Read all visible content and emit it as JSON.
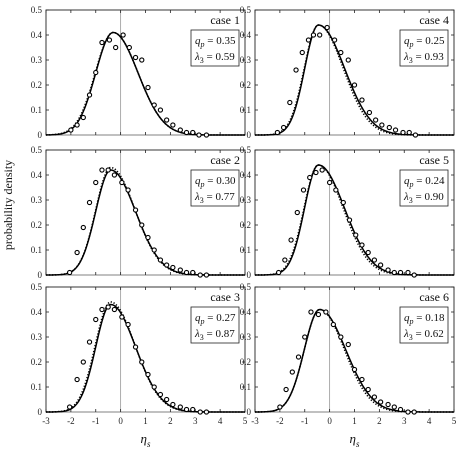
{
  "figure": {
    "ylabel": "probability density",
    "xlabel_symbol": "η",
    "xlabel_sub": "s",
    "xticks": [
      -3,
      -2,
      -1,
      0,
      1,
      2,
      3,
      4,
      5
    ],
    "yticks": [
      "0",
      "0.1",
      "0.2",
      "0.3",
      "0.4",
      "0.5"
    ],
    "param_q_symbol": "q",
    "param_q_sub": "p",
    "param_l_symbol": "λ",
    "param_l_sub": "3"
  },
  "chart_data": [
    {
      "type": "scatter",
      "title": "case 1",
      "params": {
        "qp": "0.35",
        "lambda3": "0.59"
      },
      "xlim": [
        -3,
        5
      ],
      "ylim": [
        0,
        0.5
      ],
      "points": [
        [
          -2.0,
          0.02
        ],
        [
          -1.75,
          0.04
        ],
        [
          -1.5,
          0.07
        ],
        [
          -1.25,
          0.16
        ],
        [
          -1.0,
          0.25
        ],
        [
          -0.75,
          0.37
        ],
        [
          -0.45,
          0.38
        ],
        [
          -0.2,
          0.35
        ],
        [
          0.1,
          0.4
        ],
        [
          0.35,
          0.35
        ],
        [
          0.6,
          0.31
        ],
        [
          0.85,
          0.3
        ],
        [
          1.1,
          0.19
        ],
        [
          1.35,
          0.12
        ],
        [
          1.6,
          0.1
        ],
        [
          1.85,
          0.06
        ],
        [
          2.1,
          0.04
        ],
        [
          2.4,
          0.02
        ],
        [
          2.65,
          0.01
        ],
        [
          2.9,
          0.01
        ],
        [
          3.15,
          0.0
        ],
        [
          3.45,
          0.0
        ]
      ],
      "curves": [
        {
          "style": "solid",
          "peak_x": -0.3,
          "peak_y": 0.41,
          "left_width": 0.7,
          "right_width": 1.0
        },
        {
          "style": "dotted",
          "peak_x": -0.3,
          "peak_y": 0.41,
          "left_width": 0.72,
          "right_width": 1.0
        }
      ]
    },
    {
      "type": "scatter",
      "title": "case 4",
      "params": {
        "qp": "0.25",
        "lambda3": "0.93"
      },
      "xlim": [
        -3,
        5
      ],
      "ylim": [
        0,
        0.5
      ],
      "points": [
        [
          -2.1,
          0.01
        ],
        [
          -1.85,
          0.03
        ],
        [
          -1.6,
          0.13
        ],
        [
          -1.35,
          0.26
        ],
        [
          -1.1,
          0.33
        ],
        [
          -0.85,
          0.38
        ],
        [
          -0.65,
          0.4
        ],
        [
          -0.4,
          0.4
        ],
        [
          -0.1,
          0.43
        ],
        [
          0.2,
          0.38
        ],
        [
          0.45,
          0.33
        ],
        [
          0.75,
          0.3
        ],
        [
          1.0,
          0.2
        ],
        [
          1.3,
          0.14
        ],
        [
          1.6,
          0.09
        ],
        [
          1.85,
          0.06
        ],
        [
          2.1,
          0.04
        ],
        [
          2.4,
          0.03
        ],
        [
          2.65,
          0.02
        ],
        [
          2.95,
          0.01
        ],
        [
          3.2,
          0.01
        ],
        [
          3.45,
          0.0
        ]
      ],
      "curves": [
        {
          "style": "solid",
          "peak_x": -0.45,
          "peak_y": 0.44,
          "left_width": 0.55,
          "right_width": 1.05
        },
        {
          "style": "dotted",
          "peak_x": -0.45,
          "peak_y": 0.44,
          "left_width": 0.57,
          "right_width": 1.0
        }
      ]
    },
    {
      "type": "scatter",
      "title": "case 2",
      "params": {
        "qp": "0.30",
        "lambda3": "0.77"
      },
      "xlim": [
        -3,
        5
      ],
      "ylim": [
        0,
        0.5
      ],
      "points": [
        [
          -2.05,
          0.01
        ],
        [
          -1.75,
          0.09
        ],
        [
          -1.5,
          0.19
        ],
        [
          -1.25,
          0.29
        ],
        [
          -1.0,
          0.37
        ],
        [
          -0.75,
          0.42
        ],
        [
          -0.5,
          0.42
        ],
        [
          -0.25,
          0.4
        ],
        [
          0.05,
          0.37
        ],
        [
          0.3,
          0.34
        ],
        [
          0.6,
          0.26
        ],
        [
          0.85,
          0.2
        ],
        [
          1.1,
          0.15
        ],
        [
          1.35,
          0.1
        ],
        [
          1.6,
          0.06
        ],
        [
          1.85,
          0.04
        ],
        [
          2.1,
          0.03
        ],
        [
          2.4,
          0.02
        ],
        [
          2.65,
          0.01
        ],
        [
          2.9,
          0.01
        ],
        [
          3.2,
          0.0
        ],
        [
          3.45,
          0.0
        ]
      ],
      "curves": [
        {
          "style": "solid",
          "peak_x": -0.4,
          "peak_y": 0.42,
          "left_width": 0.6,
          "right_width": 1.0
        },
        {
          "style": "dotted",
          "peak_x": -0.4,
          "peak_y": 0.43,
          "left_width": 0.6,
          "right_width": 0.98
        }
      ]
    },
    {
      "type": "scatter",
      "title": "case 5",
      "params": {
        "qp": "0.24",
        "lambda3": "0.90"
      },
      "xlim": [
        -3,
        5
      ],
      "ylim": [
        0,
        0.5
      ],
      "points": [
        [
          -2.05,
          0.01
        ],
        [
          -1.8,
          0.06
        ],
        [
          -1.55,
          0.14
        ],
        [
          -1.3,
          0.25
        ],
        [
          -1.05,
          0.34
        ],
        [
          -0.8,
          0.39
        ],
        [
          -0.55,
          0.41
        ],
        [
          -0.3,
          0.42
        ],
        [
          0.0,
          0.37
        ],
        [
          0.25,
          0.34
        ],
        [
          0.55,
          0.29
        ],
        [
          0.8,
          0.22
        ],
        [
          1.05,
          0.16
        ],
        [
          1.3,
          0.12
        ],
        [
          1.55,
          0.09
        ],
        [
          1.8,
          0.06
        ],
        [
          2.05,
          0.04
        ],
        [
          2.35,
          0.02
        ],
        [
          2.6,
          0.01
        ],
        [
          2.85,
          0.01
        ],
        [
          3.15,
          0.01
        ],
        [
          3.4,
          0.0
        ]
      ],
      "curves": [
        {
          "style": "solid",
          "peak_x": -0.45,
          "peak_y": 0.44,
          "left_width": 0.56,
          "right_width": 1.05
        },
        {
          "style": "dotted",
          "peak_x": -0.45,
          "peak_y": 0.44,
          "left_width": 0.58,
          "right_width": 1.0
        }
      ]
    },
    {
      "type": "scatter",
      "title": "case 3",
      "params": {
        "qp": "0.27",
        "lambda3": "0.87"
      },
      "xlim": [
        -3,
        5
      ],
      "ylim": [
        0,
        0.5
      ],
      "points": [
        [
          -2.05,
          0.02
        ],
        [
          -1.75,
          0.13
        ],
        [
          -1.5,
          0.2
        ],
        [
          -1.25,
          0.28
        ],
        [
          -1.0,
          0.37
        ],
        [
          -0.75,
          0.41
        ],
        [
          -0.5,
          0.42
        ],
        [
          -0.25,
          0.41
        ],
        [
          0.05,
          0.38
        ],
        [
          0.3,
          0.35
        ],
        [
          0.6,
          0.26
        ],
        [
          0.85,
          0.2
        ],
        [
          1.1,
          0.15
        ],
        [
          1.35,
          0.1
        ],
        [
          1.6,
          0.07
        ],
        [
          1.85,
          0.05
        ],
        [
          2.1,
          0.03
        ],
        [
          2.4,
          0.02
        ],
        [
          2.65,
          0.01
        ],
        [
          2.9,
          0.01
        ],
        [
          3.2,
          0.0
        ],
        [
          3.45,
          0.0
        ]
      ],
      "curves": [
        {
          "style": "solid",
          "peak_x": -0.4,
          "peak_y": 0.43,
          "left_width": 0.6,
          "right_width": 1.0
        },
        {
          "style": "dotted",
          "peak_x": -0.4,
          "peak_y": 0.44,
          "left_width": 0.62,
          "right_width": 0.98
        }
      ]
    },
    {
      "type": "scatter",
      "title": "case 6",
      "params": {
        "qp": "0.18",
        "lambda3": "0.62"
      },
      "xlim": [
        -3,
        5
      ],
      "ylim": [
        0,
        0.5
      ],
      "points": [
        [
          -2.0,
          0.02
        ],
        [
          -1.75,
          0.09
        ],
        [
          -1.5,
          0.16
        ],
        [
          -1.25,
          0.22
        ],
        [
          -1.0,
          0.3
        ],
        [
          -0.75,
          0.4
        ],
        [
          -0.45,
          0.39
        ],
        [
          -0.15,
          0.4
        ],
        [
          0.15,
          0.35
        ],
        [
          0.45,
          0.3
        ],
        [
          0.75,
          0.27
        ],
        [
          1.0,
          0.17
        ],
        [
          1.3,
          0.13
        ],
        [
          1.55,
          0.09
        ],
        [
          1.8,
          0.06
        ],
        [
          2.05,
          0.04
        ],
        [
          2.35,
          0.03
        ],
        [
          2.6,
          0.02
        ],
        [
          2.85,
          0.01
        ],
        [
          3.15,
          0.0
        ],
        [
          3.4,
          0.0
        ]
      ],
      "curves": [
        {
          "style": "solid",
          "peak_x": -0.4,
          "peak_y": 0.41,
          "left_width": 0.62,
          "right_width": 1.05
        },
        {
          "style": "dotted",
          "peak_x": -0.4,
          "peak_y": 0.41,
          "left_width": 0.62,
          "right_width": 1.0
        }
      ]
    }
  ]
}
